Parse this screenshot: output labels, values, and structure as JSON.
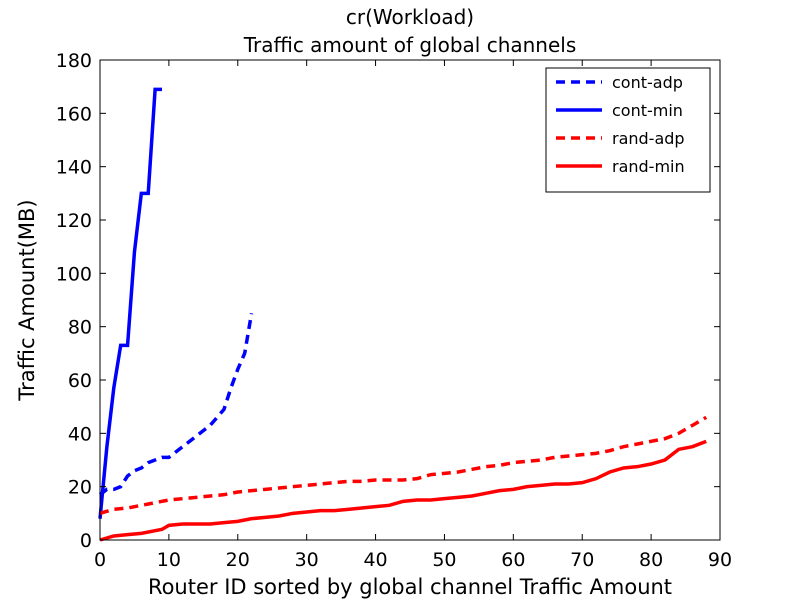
{
  "chart_data": {
    "type": "line",
    "title": "cr(Workload)",
    "subtitle": "Traffic amount of global channels",
    "xlabel": "Router ID sorted by global channel Traffic Amount",
    "ylabel": "Traffic Amount(MB)",
    "xlim": [
      0,
      90
    ],
    "ylim": [
      0,
      180
    ],
    "xticks": [
      0,
      10,
      20,
      30,
      40,
      50,
      60,
      70,
      80,
      90
    ],
    "yticks": [
      0,
      20,
      40,
      60,
      80,
      100,
      120,
      140,
      160,
      180
    ],
    "grid": false,
    "legend_position": "top-right",
    "series": [
      {
        "name": "cont-adp",
        "color": "#0000ff",
        "dash": "dashed",
        "points": [
          [
            0,
            17
          ],
          [
            1,
            19
          ],
          [
            2,
            19
          ],
          [
            3,
            20
          ],
          [
            4,
            24
          ],
          [
            5,
            26
          ],
          [
            6,
            27
          ],
          [
            7,
            29
          ],
          [
            8,
            30
          ],
          [
            9,
            31
          ],
          [
            10,
            31
          ],
          [
            11,
            33
          ],
          [
            12,
            35
          ],
          [
            13,
            37
          ],
          [
            14,
            39
          ],
          [
            15,
            41
          ],
          [
            16,
            43
          ],
          [
            17,
            46
          ],
          [
            18,
            49
          ],
          [
            19,
            57
          ],
          [
            20,
            64
          ],
          [
            21,
            70
          ],
          [
            22,
            85
          ]
        ]
      },
      {
        "name": "cont-min",
        "color": "#0000ff",
        "dash": "solid",
        "points": [
          [
            0,
            8
          ],
          [
            1,
            35
          ],
          [
            2,
            57
          ],
          [
            3,
            73
          ],
          [
            4,
            73
          ],
          [
            5,
            108
          ],
          [
            6,
            130
          ],
          [
            7,
            130
          ],
          [
            8,
            169
          ],
          [
            9,
            169
          ]
        ]
      },
      {
        "name": "rand-adp",
        "color": "#ff0000",
        "dash": "dashed",
        "points": [
          [
            0,
            10
          ],
          [
            2,
            11.5
          ],
          [
            4,
            12
          ],
          [
            6,
            13
          ],
          [
            8,
            14
          ],
          [
            10,
            15
          ],
          [
            12,
            15.5
          ],
          [
            14,
            16
          ],
          [
            16,
            16.5
          ],
          [
            18,
            17
          ],
          [
            20,
            18
          ],
          [
            22,
            18.5
          ],
          [
            24,
            19
          ],
          [
            26,
            19.5
          ],
          [
            28,
            20
          ],
          [
            30,
            20.5
          ],
          [
            32,
            21
          ],
          [
            34,
            21.5
          ],
          [
            36,
            22
          ],
          [
            38,
            22
          ],
          [
            40,
            22.5
          ],
          [
            42,
            22.5
          ],
          [
            44,
            22.5
          ],
          [
            46,
            23
          ],
          [
            48,
            24.5
          ],
          [
            50,
            25
          ],
          [
            52,
            25.5
          ],
          [
            54,
            26.5
          ],
          [
            56,
            27.5
          ],
          [
            58,
            28
          ],
          [
            60,
            29
          ],
          [
            62,
            29.5
          ],
          [
            64,
            30
          ],
          [
            66,
            31
          ],
          [
            68,
            31.5
          ],
          [
            70,
            32
          ],
          [
            72,
            32.5
          ],
          [
            74,
            33.5
          ],
          [
            76,
            35
          ],
          [
            78,
            36
          ],
          [
            80,
            37
          ],
          [
            82,
            38
          ],
          [
            84,
            40
          ],
          [
            86,
            43
          ],
          [
            88,
            46
          ]
        ]
      },
      {
        "name": "rand-min",
        "color": "#ff0000",
        "dash": "solid",
        "points": [
          [
            0,
            0
          ],
          [
            2,
            1.5
          ],
          [
            4,
            2
          ],
          [
            6,
            2.5
          ],
          [
            8,
            3.5
          ],
          [
            9,
            4
          ],
          [
            10,
            5.5
          ],
          [
            12,
            6
          ],
          [
            14,
            6
          ],
          [
            16,
            6
          ],
          [
            18,
            6.5
          ],
          [
            20,
            7
          ],
          [
            22,
            8
          ],
          [
            24,
            8.5
          ],
          [
            26,
            9
          ],
          [
            28,
            10
          ],
          [
            30,
            10.5
          ],
          [
            32,
            11
          ],
          [
            34,
            11
          ],
          [
            36,
            11.5
          ],
          [
            38,
            12
          ],
          [
            40,
            12.5
          ],
          [
            42,
            13
          ],
          [
            44,
            14.5
          ],
          [
            46,
            15
          ],
          [
            48,
            15
          ],
          [
            50,
            15.5
          ],
          [
            52,
            16
          ],
          [
            54,
            16.5
          ],
          [
            56,
            17.5
          ],
          [
            58,
            18.5
          ],
          [
            60,
            19
          ],
          [
            62,
            20
          ],
          [
            64,
            20.5
          ],
          [
            66,
            21
          ],
          [
            68,
            21
          ],
          [
            70,
            21.5
          ],
          [
            72,
            23
          ],
          [
            74,
            25.5
          ],
          [
            76,
            27
          ],
          [
            78,
            27.5
          ],
          [
            80,
            28.5
          ],
          [
            82,
            30
          ],
          [
            84,
            34
          ],
          [
            86,
            35
          ],
          [
            88,
            37
          ]
        ]
      }
    ]
  }
}
